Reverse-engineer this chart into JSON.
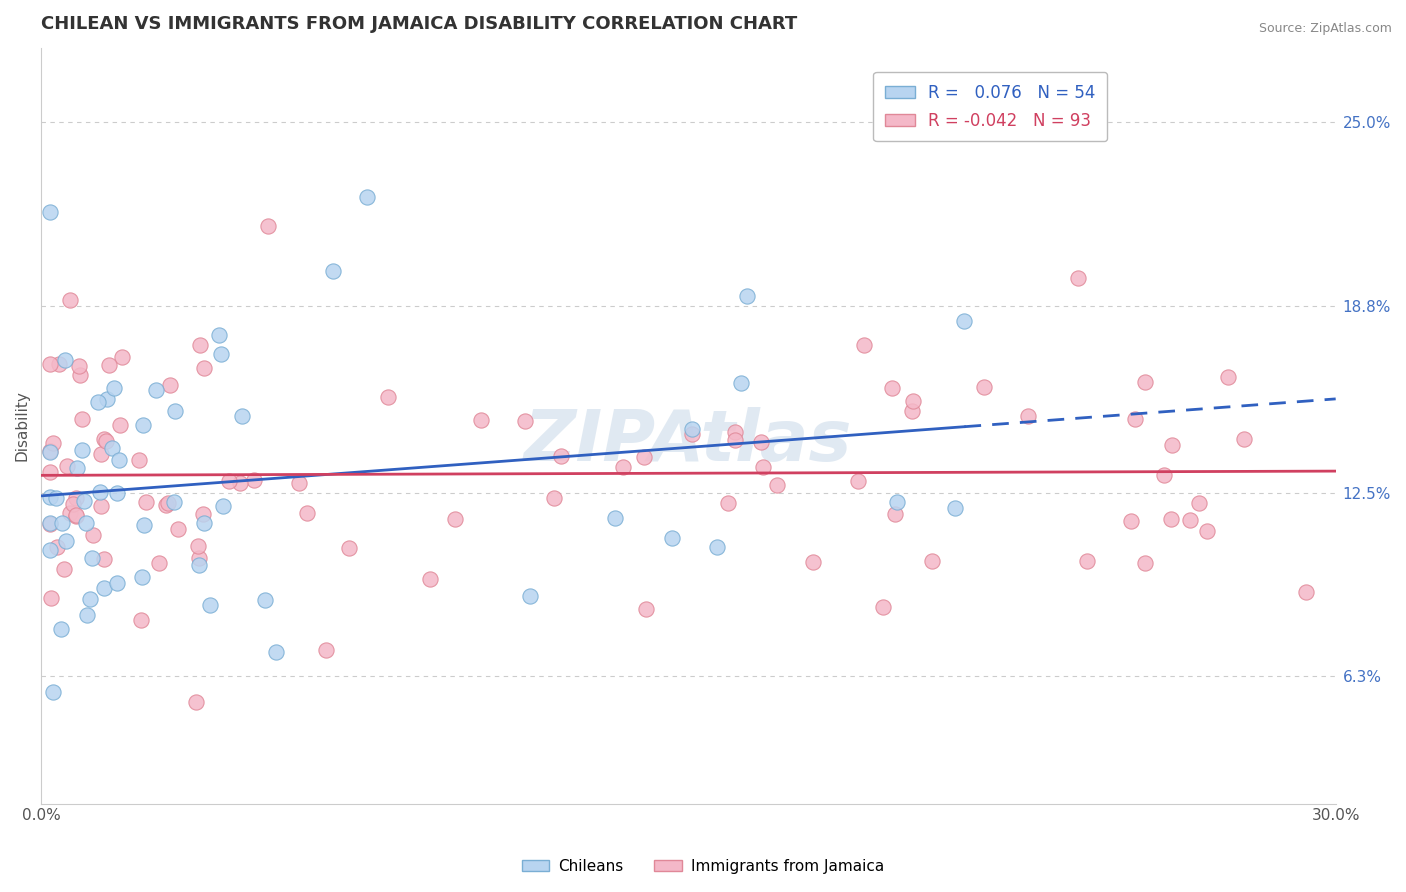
{
  "title": "CHILEAN VS IMMIGRANTS FROM JAMAICA DISABILITY CORRELATION CHART",
  "source": "Source: ZipAtlas.com",
  "ylabel": "Disability",
  "right_yticks": [
    6.3,
    12.5,
    18.8,
    25.0
  ],
  "right_ytick_labels": [
    "6.3%",
    "12.5%",
    "18.8%",
    "25.0%"
  ],
  "xmin": 0.0,
  "xmax": 30.0,
  "ymin": 2.0,
  "ymax": 27.5,
  "chileans_R": 0.076,
  "chileans_N": 54,
  "jamaica_R": -0.042,
  "jamaica_N": 93,
  "chilean_color": "#b8d4f0",
  "chilean_edge": "#7aaed4",
  "jamaica_color": "#f4b8c8",
  "jamaica_edge": "#e08898",
  "trend_chilean_color": "#3060c0",
  "trend_jamaica_color": "#d04060",
  "background_color": "#ffffff",
  "grid_color": "#cccccc",
  "title_color": "#333333",
  "watermark": "ZIPAtlas",
  "chilean_seed": 77,
  "jamaica_seed": 42
}
